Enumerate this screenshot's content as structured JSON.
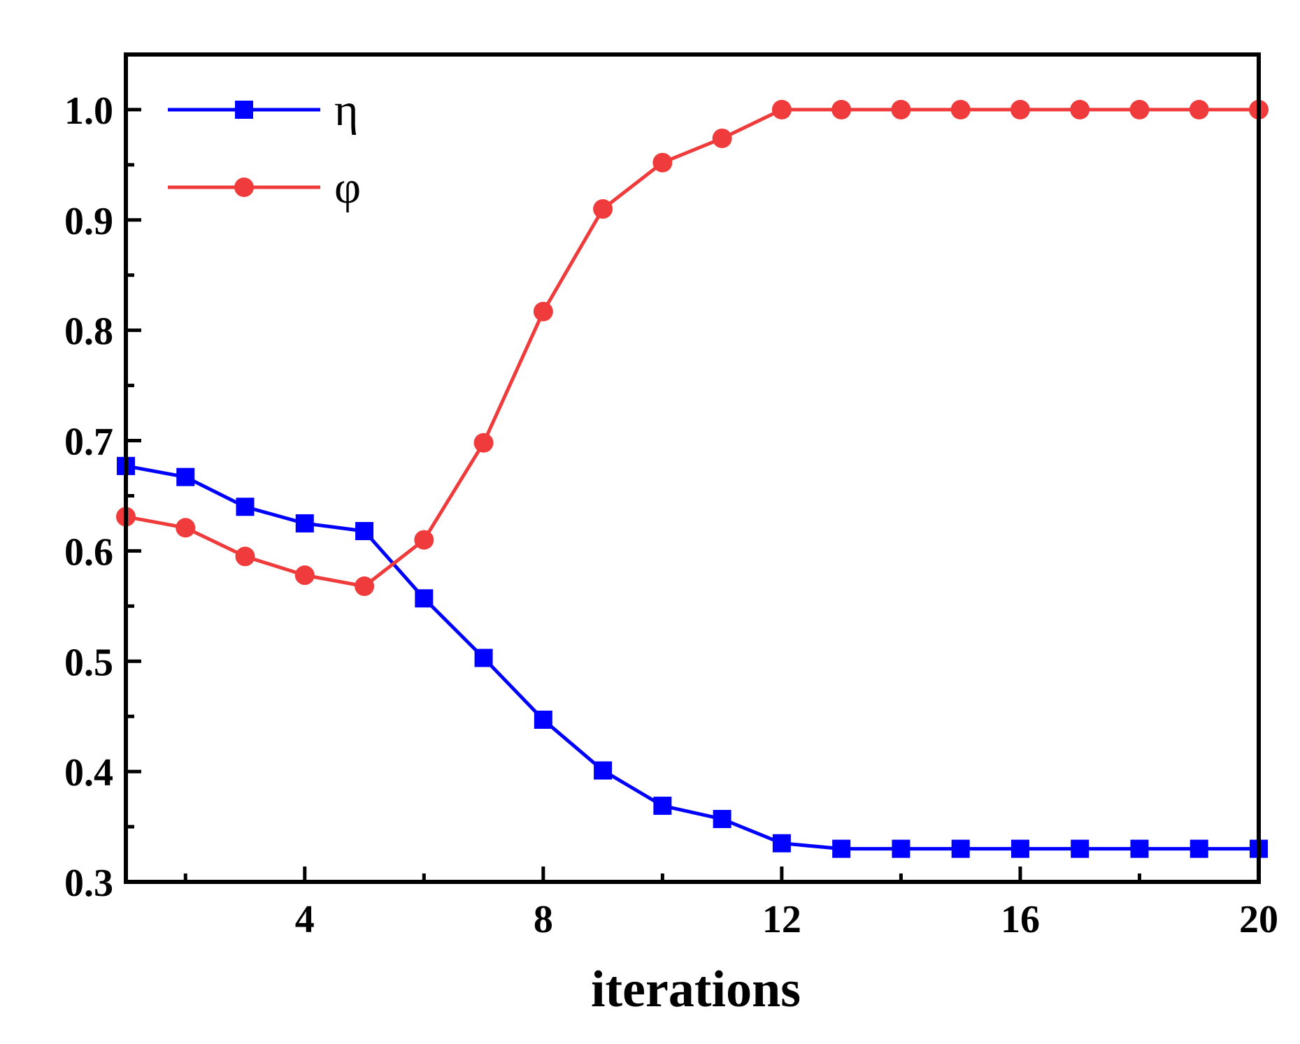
{
  "chart_data": {
    "type": "line",
    "title": "",
    "xlabel": "iterations",
    "ylabel": "",
    "xlim": [
      1,
      20
    ],
    "ylim": [
      0.3,
      1.05
    ],
    "xticks": [
      4,
      8,
      12,
      16,
      20
    ],
    "xtick_labels": [
      "4",
      "8",
      "12",
      "16",
      "20"
    ],
    "yticks": [
      0.3,
      0.4,
      0.5,
      0.6,
      0.7,
      0.8,
      0.9,
      1.0
    ],
    "ytick_labels": [
      "0.3",
      "0.4",
      "0.5",
      "0.6",
      "0.7",
      "0.8",
      "0.9",
      "1.0"
    ],
    "grid": false,
    "legend_position": "top-left",
    "x": [
      1,
      2,
      3,
      4,
      5,
      6,
      7,
      8,
      9,
      10,
      11,
      12,
      13,
      14,
      15,
      16,
      17,
      18,
      19,
      20
    ],
    "series": [
      {
        "name": "η",
        "color": "#0000ff",
        "marker": "square",
        "values": [
          0.677,
          0.667,
          0.64,
          0.625,
          0.618,
          0.557,
          0.503,
          0.447,
          0.401,
          0.369,
          0.357,
          0.335,
          0.33,
          0.33,
          0.33,
          0.33,
          0.33,
          0.33,
          0.33,
          0.33
        ]
      },
      {
        "name": "φ",
        "color": "#ef3b3b",
        "marker": "circle",
        "values": [
          0.631,
          0.621,
          0.595,
          0.578,
          0.568,
          0.61,
          0.698,
          0.817,
          0.91,
          0.952,
          0.974,
          1.0,
          1.0,
          1.0,
          1.0,
          1.0,
          1.0,
          1.0,
          1.0,
          1.0
        ]
      }
    ]
  }
}
